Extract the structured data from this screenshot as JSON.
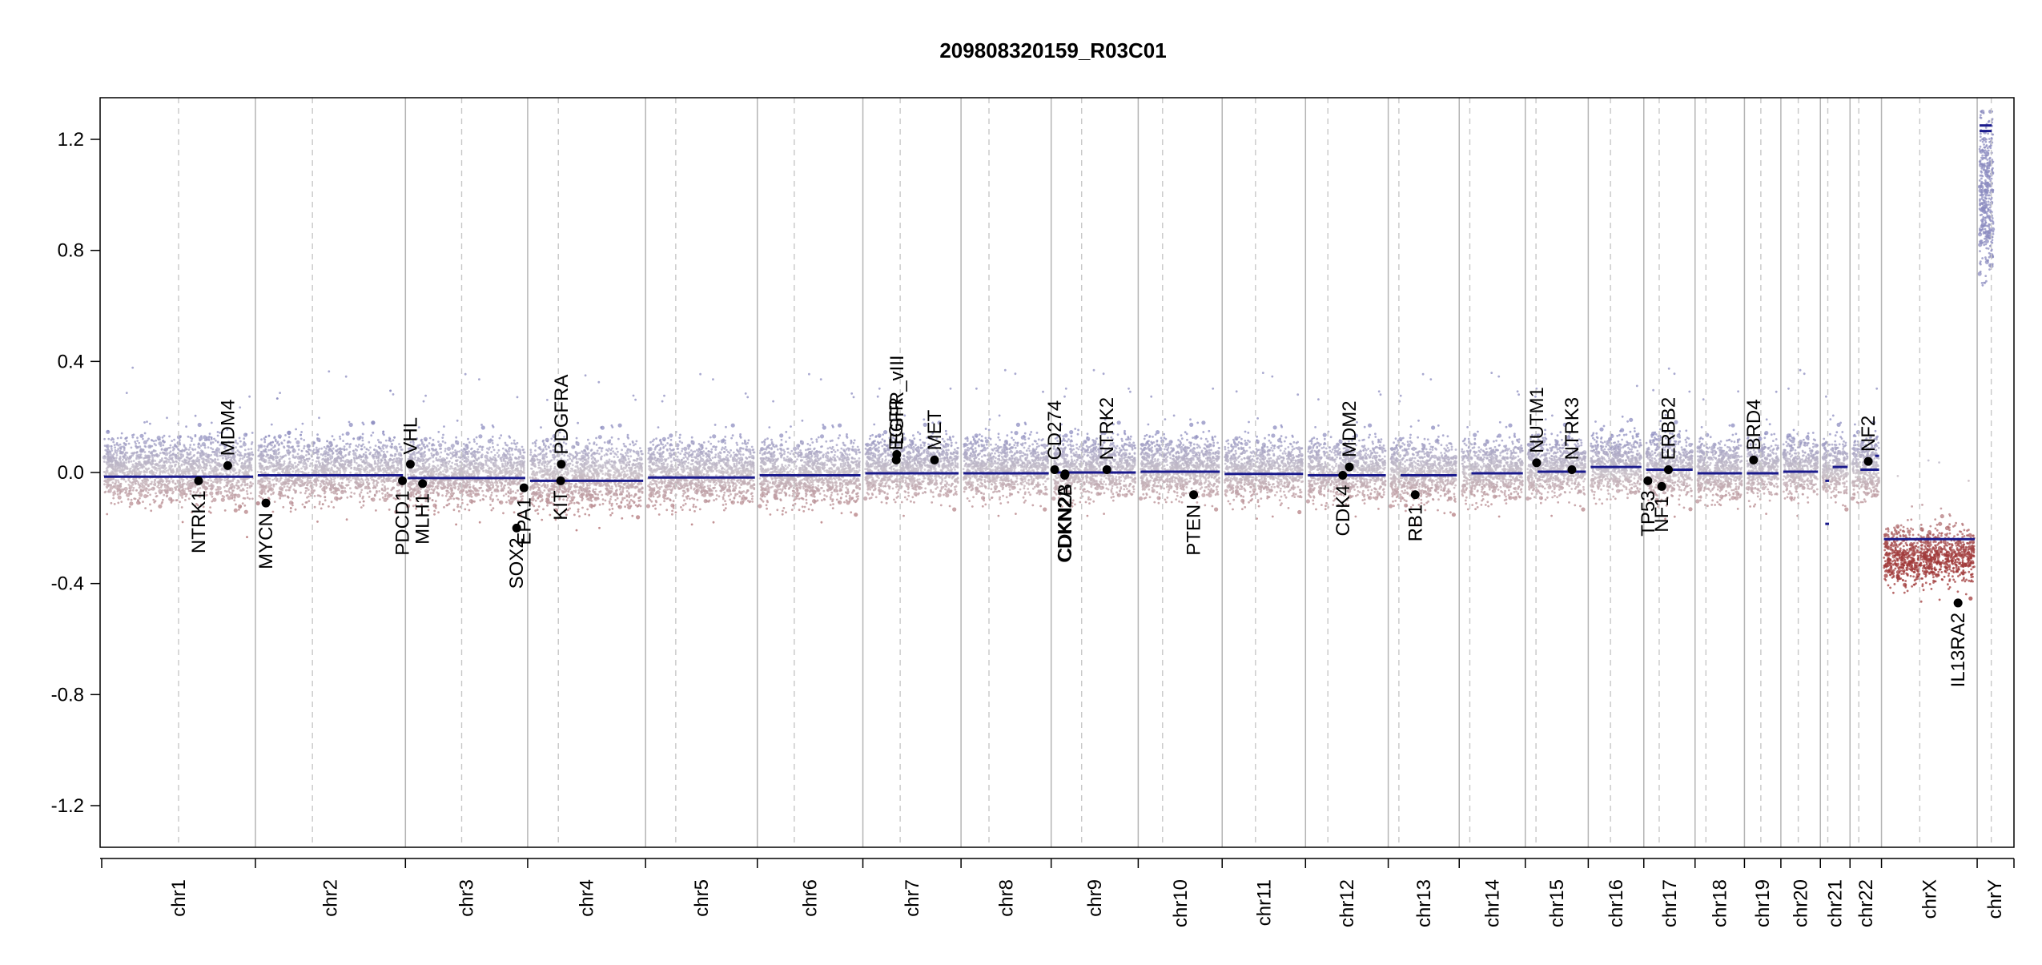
{
  "chart_data": {
    "type": "scatter",
    "title": "209808320159_R03C01",
    "xlabel": "",
    "ylabel": "",
    "ylim": [
      -1.35,
      1.35
    ],
    "y_ticks": [
      -1.2,
      -0.8,
      -0.4,
      0.0,
      0.4,
      0.8,
      1.2
    ],
    "y_tick_labels": [
      "-1.2",
      "-0.8",
      "-0.4",
      "0.0",
      "0.4",
      "0.8",
      "1.2"
    ],
    "grid": false,
    "colors": {
      "segment": "#1a1a8c",
      "point_gain": "#8c8cc0",
      "point_neutral": "#c8c0c8",
      "point_loss": "#a03a3a",
      "gene_marker": "#000000",
      "chrom_boundary": "#b4b4b4",
      "centromere": "#c8c8c8"
    },
    "chromosomes": [
      {
        "name": "chr1",
        "length": 249,
        "centromere_frac": 0.5,
        "segments": [
          {
            "from": 0,
            "to": 1,
            "y": -0.015
          }
        ],
        "mean": 0.01,
        "spread": 0.085
      },
      {
        "name": "chr2",
        "length": 243,
        "centromere_frac": 0.38,
        "segments": [
          {
            "from": 0,
            "to": 1,
            "y": -0.01
          }
        ],
        "mean": 0.01,
        "spread": 0.085
      },
      {
        "name": "chr3",
        "length": 198,
        "centromere_frac": 0.46,
        "segments": [
          {
            "from": 0,
            "to": 1,
            "y": -0.02
          }
        ],
        "mean": 0.0,
        "spread": 0.085
      },
      {
        "name": "chr4",
        "length": 191,
        "centromere_frac": 0.26,
        "segments": [
          {
            "from": 0,
            "to": 1,
            "y": -0.03
          }
        ],
        "mean": -0.01,
        "spread": 0.09
      },
      {
        "name": "chr5",
        "length": 181,
        "centromere_frac": 0.27,
        "segments": [
          {
            "from": 0,
            "to": 1,
            "y": -0.018
          }
        ],
        "mean": 0.0,
        "spread": 0.085
      },
      {
        "name": "chr6",
        "length": 171,
        "centromere_frac": 0.35,
        "segments": [
          {
            "from": 0,
            "to": 1,
            "y": -0.01
          }
        ],
        "mean": 0.0,
        "spread": 0.085
      },
      {
        "name": "chr7",
        "length": 159,
        "centromere_frac": 0.38,
        "segments": [
          {
            "from": 0,
            "to": 1,
            "y": -0.003
          }
        ],
        "mean": 0.02,
        "spread": 0.08
      },
      {
        "name": "chr8",
        "length": 146,
        "centromere_frac": 0.31,
        "segments": [
          {
            "from": 0,
            "to": 1,
            "y": -0.003
          }
        ],
        "mean": 0.02,
        "spread": 0.08
      },
      {
        "name": "chr9",
        "length": 141,
        "centromere_frac": 0.35,
        "segments": [
          {
            "from": 0,
            "to": 1,
            "y": 0.0
          }
        ],
        "mean": 0.02,
        "spread": 0.08
      },
      {
        "name": "chr10",
        "length": 136,
        "centromere_frac": 0.29,
        "segments": [
          {
            "from": 0,
            "to": 1,
            "y": 0.003
          }
        ],
        "mean": 0.02,
        "spread": 0.08
      },
      {
        "name": "chr11",
        "length": 135,
        "centromere_frac": 0.4,
        "segments": [
          {
            "from": 0,
            "to": 1,
            "y": -0.005
          }
        ],
        "mean": 0.01,
        "spread": 0.08
      },
      {
        "name": "chr12",
        "length": 134,
        "centromere_frac": 0.27,
        "segments": [
          {
            "from": 0,
            "to": 1,
            "y": -0.01
          }
        ],
        "mean": 0.01,
        "spread": 0.08
      },
      {
        "name": "chr13",
        "length": 115,
        "centromere_frac": 0.15,
        "segments": [
          {
            "from": 0.15,
            "to": 1,
            "y": -0.01
          }
        ],
        "mean": 0.0,
        "spread": 0.085
      },
      {
        "name": "chr14",
        "length": 107,
        "centromere_frac": 0.16,
        "segments": [
          {
            "from": 0.16,
            "to": 1,
            "y": -0.003
          }
        ],
        "mean": 0.01,
        "spread": 0.08
      },
      {
        "name": "chr15",
        "length": 102,
        "centromere_frac": 0.17,
        "segments": [
          {
            "from": 0.17,
            "to": 1,
            "y": 0.003
          }
        ],
        "mean": 0.02,
        "spread": 0.08
      },
      {
        "name": "chr16",
        "length": 90,
        "centromere_frac": 0.4,
        "segments": [
          {
            "from": 0,
            "to": 1,
            "y": 0.02
          }
        ],
        "mean": 0.03,
        "spread": 0.08
      },
      {
        "name": "chr17",
        "length": 83,
        "centromere_frac": 0.3,
        "segments": [
          {
            "from": 0,
            "to": 1,
            "y": 0.01
          }
        ],
        "mean": 0.02,
        "spread": 0.085
      },
      {
        "name": "chr18",
        "length": 80,
        "centromere_frac": 0.22,
        "segments": [
          {
            "from": 0,
            "to": 1,
            "y": -0.003
          }
        ],
        "mean": 0.01,
        "spread": 0.08
      },
      {
        "name": "chr19",
        "length": 59,
        "centromere_frac": 0.45,
        "segments": [
          {
            "from": 0,
            "to": 1,
            "y": -0.003
          }
        ],
        "mean": 0.02,
        "spread": 0.08
      },
      {
        "name": "chr20",
        "length": 64,
        "centromere_frac": 0.44,
        "segments": [
          {
            "from": 0,
            "to": 1,
            "y": 0.003
          }
        ],
        "mean": 0.02,
        "spread": 0.08
      },
      {
        "name": "chr21",
        "length": 48,
        "centromere_frac": 0.25,
        "segments": [
          {
            "from": 0.1,
            "to": 0.25,
            "y": -0.03
          },
          {
            "from": 0.1,
            "to": 0.25,
            "y": -0.185
          },
          {
            "from": 0.4,
            "to": 1,
            "y": 0.02
          }
        ],
        "mean": 0.02,
        "spread": 0.08
      },
      {
        "name": "chr22",
        "length": 51,
        "centromere_frac": 0.28,
        "segments": [
          {
            "from": 0.3,
            "to": 1,
            "y": 0.01
          },
          {
            "from": 0.85,
            "to": 1,
            "y": 0.06
          }
        ],
        "mean": 0.02,
        "spread": 0.08
      },
      {
        "name": "chrX",
        "length": 155,
        "centromere_frac": 0.4,
        "segments": [
          {
            "from": 0,
            "to": 1,
            "y": -0.24
          }
        ],
        "mean": -0.3,
        "spread": 0.075
      },
      {
        "name": "chrY",
        "length": 57,
        "centromere_frac": 0.4,
        "segments": [
          {
            "from": 0,
            "to": 0.4,
            "y": 1.23
          },
          {
            "from": 0,
            "to": 0.4,
            "y": 1.25
          }
        ],
        "mean": 1.0,
        "spread": 0.2
      }
    ],
    "genes": [
      {
        "name": "NTRK1",
        "chr": "chr1",
        "pos": 0.63,
        "value": -0.03,
        "side": "below"
      },
      {
        "name": "MDM4",
        "chr": "chr1",
        "pos": 0.82,
        "value": 0.025,
        "side": "above"
      },
      {
        "name": "MYCN",
        "chr": "chr2",
        "pos": 0.07,
        "value": -0.11,
        "side": "below"
      },
      {
        "name": "PDCD1",
        "chr": "chr2",
        "pos": 0.98,
        "value": -0.03,
        "side": "below"
      },
      {
        "name": "VHL",
        "chr": "chr3",
        "pos": 0.04,
        "value": 0.03,
        "side": "above"
      },
      {
        "name": "MLH1",
        "chr": "chr3",
        "pos": 0.14,
        "value": -0.04,
        "side": "below"
      },
      {
        "name": "SOX2",
        "chr": "chr3",
        "pos": 0.91,
        "value": -0.2,
        "side": "below"
      },
      {
        "name": "EPA1",
        "chr": "chr3",
        "pos": 0.97,
        "value": -0.055,
        "side": "below"
      },
      {
        "name": "KIT",
        "chr": "chr4",
        "pos": 0.28,
        "value": -0.03,
        "side": "below"
      },
      {
        "name": "PDGFRA",
        "chr": "chr4",
        "pos": 0.285,
        "value": 0.03,
        "side": "above"
      },
      {
        "name": "EGFR",
        "chr": "chr7",
        "pos": 0.34,
        "value": 0.045,
        "side": "above"
      },
      {
        "name": "EGFR_vIII",
        "chr": "chr7",
        "pos": 0.345,
        "value": 0.065,
        "side": "above"
      },
      {
        "name": "MET",
        "chr": "chr7",
        "pos": 0.73,
        "value": 0.045,
        "side": "above"
      },
      {
        "name": "CD274",
        "chr": "chr9",
        "pos": 0.04,
        "value": 0.01,
        "side": "above"
      },
      {
        "name": "CDKN2A",
        "chr": "chr9",
        "pos": 0.155,
        "value": -0.01,
        "side": "below"
      },
      {
        "name": "CDKN2B",
        "chr": "chr9",
        "pos": 0.16,
        "value": -0.005,
        "side": "below"
      },
      {
        "name": "NTRK2",
        "chr": "chr9",
        "pos": 0.64,
        "value": 0.01,
        "side": "above"
      },
      {
        "name": "PTEN",
        "chr": "chr10",
        "pos": 0.66,
        "value": -0.08,
        "side": "below"
      },
      {
        "name": "CDK4",
        "chr": "chr12",
        "pos": 0.45,
        "value": -0.01,
        "side": "below"
      },
      {
        "name": "MDM2",
        "chr": "chr12",
        "pos": 0.53,
        "value": 0.02,
        "side": "above"
      },
      {
        "name": "RB1",
        "chr": "chr13",
        "pos": 0.38,
        "value": -0.08,
        "side": "below"
      },
      {
        "name": "NUTM1",
        "chr": "chr15",
        "pos": 0.18,
        "value": 0.035,
        "side": "above"
      },
      {
        "name": "NTRK3",
        "chr": "chr15",
        "pos": 0.74,
        "value": 0.01,
        "side": "above"
      },
      {
        "name": "TP53",
        "chr": "chr17",
        "pos": 0.08,
        "value": -0.03,
        "side": "below"
      },
      {
        "name": "NF1",
        "chr": "chr17",
        "pos": 0.35,
        "value": -0.05,
        "side": "below"
      },
      {
        "name": "ERBB2",
        "chr": "chr17",
        "pos": 0.48,
        "value": 0.01,
        "side": "above"
      },
      {
        "name": "BRD4",
        "chr": "chr19",
        "pos": 0.25,
        "value": 0.045,
        "side": "above"
      },
      {
        "name": "NF2",
        "chr": "chr22",
        "pos": 0.58,
        "value": 0.04,
        "side": "above"
      },
      {
        "name": "IL13RA2",
        "chr": "chrX",
        "pos": 0.8,
        "value": -0.47,
        "side": "below"
      }
    ]
  }
}
